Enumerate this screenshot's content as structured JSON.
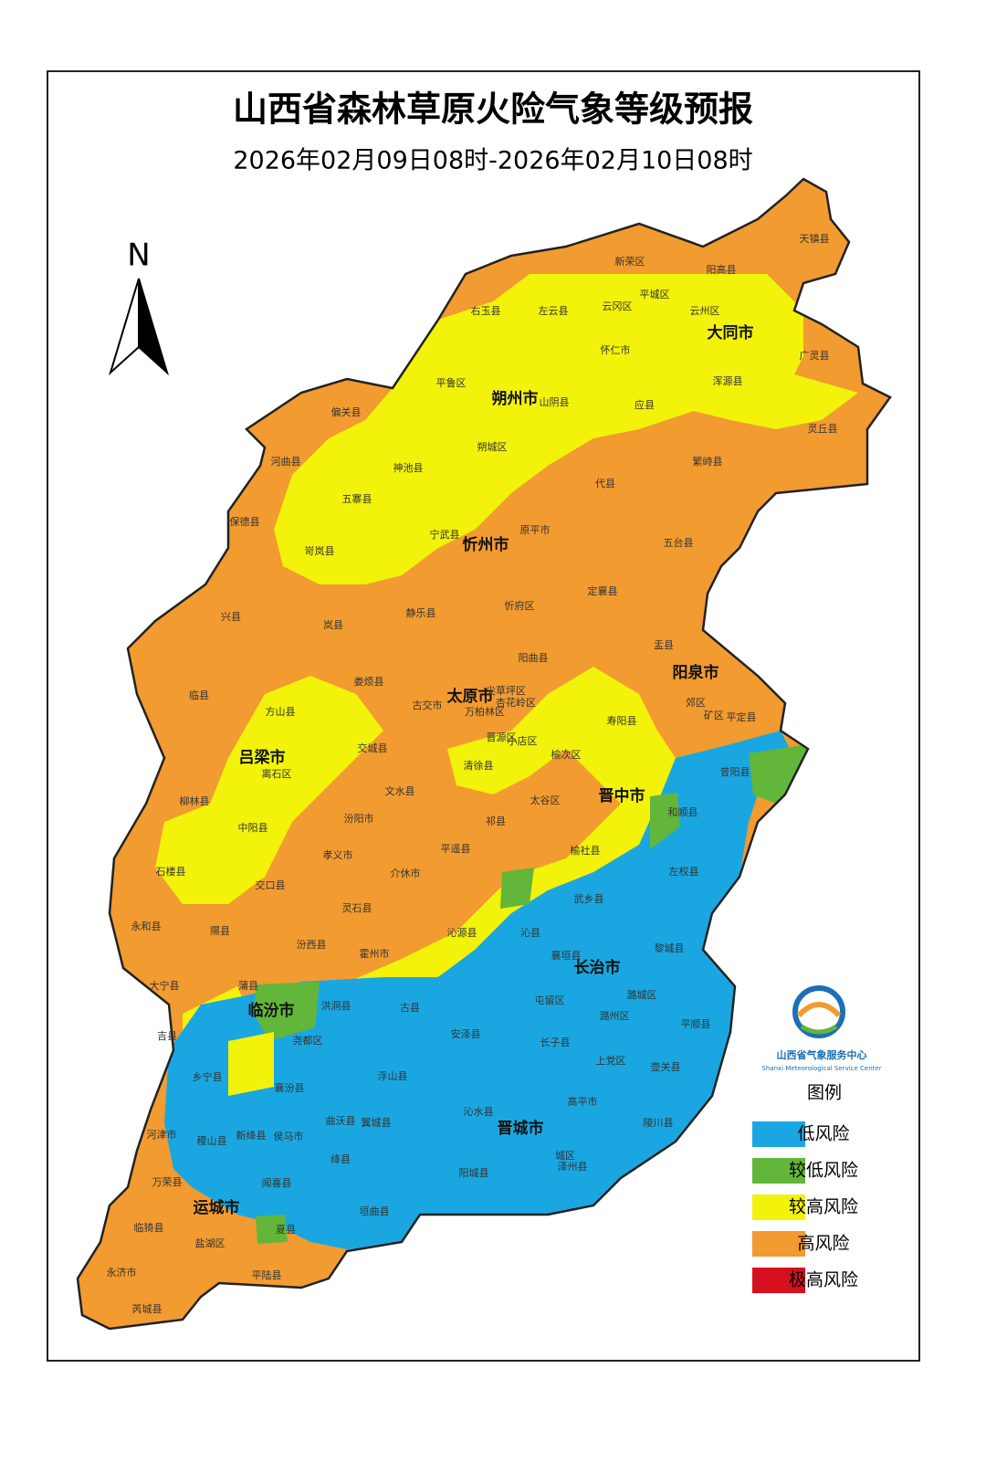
{
  "title": "山西省森林草原火险气象等级预报",
  "subtitle": "2026年02月09日08时-2026年02月10日08时",
  "north": "N",
  "cities": [
    "大同市",
    "朔州市",
    "忻州市",
    "阳泉市",
    "太原市",
    "吕梁市",
    "晋中市",
    "长治市",
    "临汾市",
    "晋城市",
    "运城市"
  ],
  "counties": [
    "天镇县",
    "新荣区",
    "阳高县",
    "右玉县",
    "左云县",
    "云冈区",
    "平城区",
    "云州区",
    "怀仁市",
    "广灵县",
    "平鲁区",
    "山阴县",
    "应县",
    "浑源县",
    "灵丘县",
    "偏关县",
    "朔城区",
    "河曲县",
    "神池县",
    "代县",
    "繁峙县",
    "五寨县",
    "保德县",
    "宁武县",
    "原平市",
    "五台县",
    "岢岚县",
    "静乐县",
    "忻府区",
    "定襄县",
    "兴县",
    "岚县",
    "盂县",
    "阳曲县",
    "娄烦县",
    "尖草坪区",
    "古交市",
    "万柏林区",
    "杏花岭区",
    "郊区",
    "矿区",
    "平定县",
    "临县",
    "方山县",
    "寿阳县",
    "晋源区",
    "小店区",
    "离石区",
    "交城县",
    "榆次区",
    "清徐县",
    "昔阳县",
    "柳林县",
    "文水县",
    "太谷区",
    "和顺县",
    "中阳县",
    "汾阳市",
    "祁县",
    "石楼县",
    "孝义市",
    "平遥县",
    "榆社县",
    "左权县",
    "交口县",
    "介休市",
    "武乡县",
    "永和县",
    "隰县",
    "灵石县",
    "沁源县",
    "沁县",
    "黎城县",
    "汾西县",
    "霍州市",
    "襄垣县",
    "大宁县",
    "蒲县",
    "屯留区",
    "潞城区",
    "洪洞县",
    "古县",
    "潞州区",
    "平顺县",
    "吉县",
    "尧都区",
    "安泽县",
    "长子县",
    "上党区",
    "壶关县",
    "乡宁县",
    "襄汾县",
    "浮山县",
    "高平市",
    "沁水县",
    "曲沃县",
    "翼城县",
    "陵川县",
    "河津市",
    "稷山县",
    "新绛县",
    "侯马市",
    "绛县",
    "城区",
    "泽州县",
    "万荣县",
    "阳城县",
    "闻喜县",
    "垣曲县",
    "临猗县",
    "夏县",
    "盐湖区",
    "永济市",
    "平陆县",
    "芮城县"
  ],
  "legend": {
    "title": "图例",
    "items": [
      {
        "label": "低风险",
        "color": "#1aa7e1"
      },
      {
        "label": "较低风险",
        "color": "#62b63a"
      },
      {
        "label": "较高风险",
        "color": "#f2f20a"
      },
      {
        "label": "高风险",
        "color": "#f29b30"
      },
      {
        "label": "极高风险",
        "color": "#d7101f"
      }
    ]
  },
  "logo": {
    "name": "山西省气象服务中心",
    "english": "Shanxi Meteorological Service Center"
  }
}
